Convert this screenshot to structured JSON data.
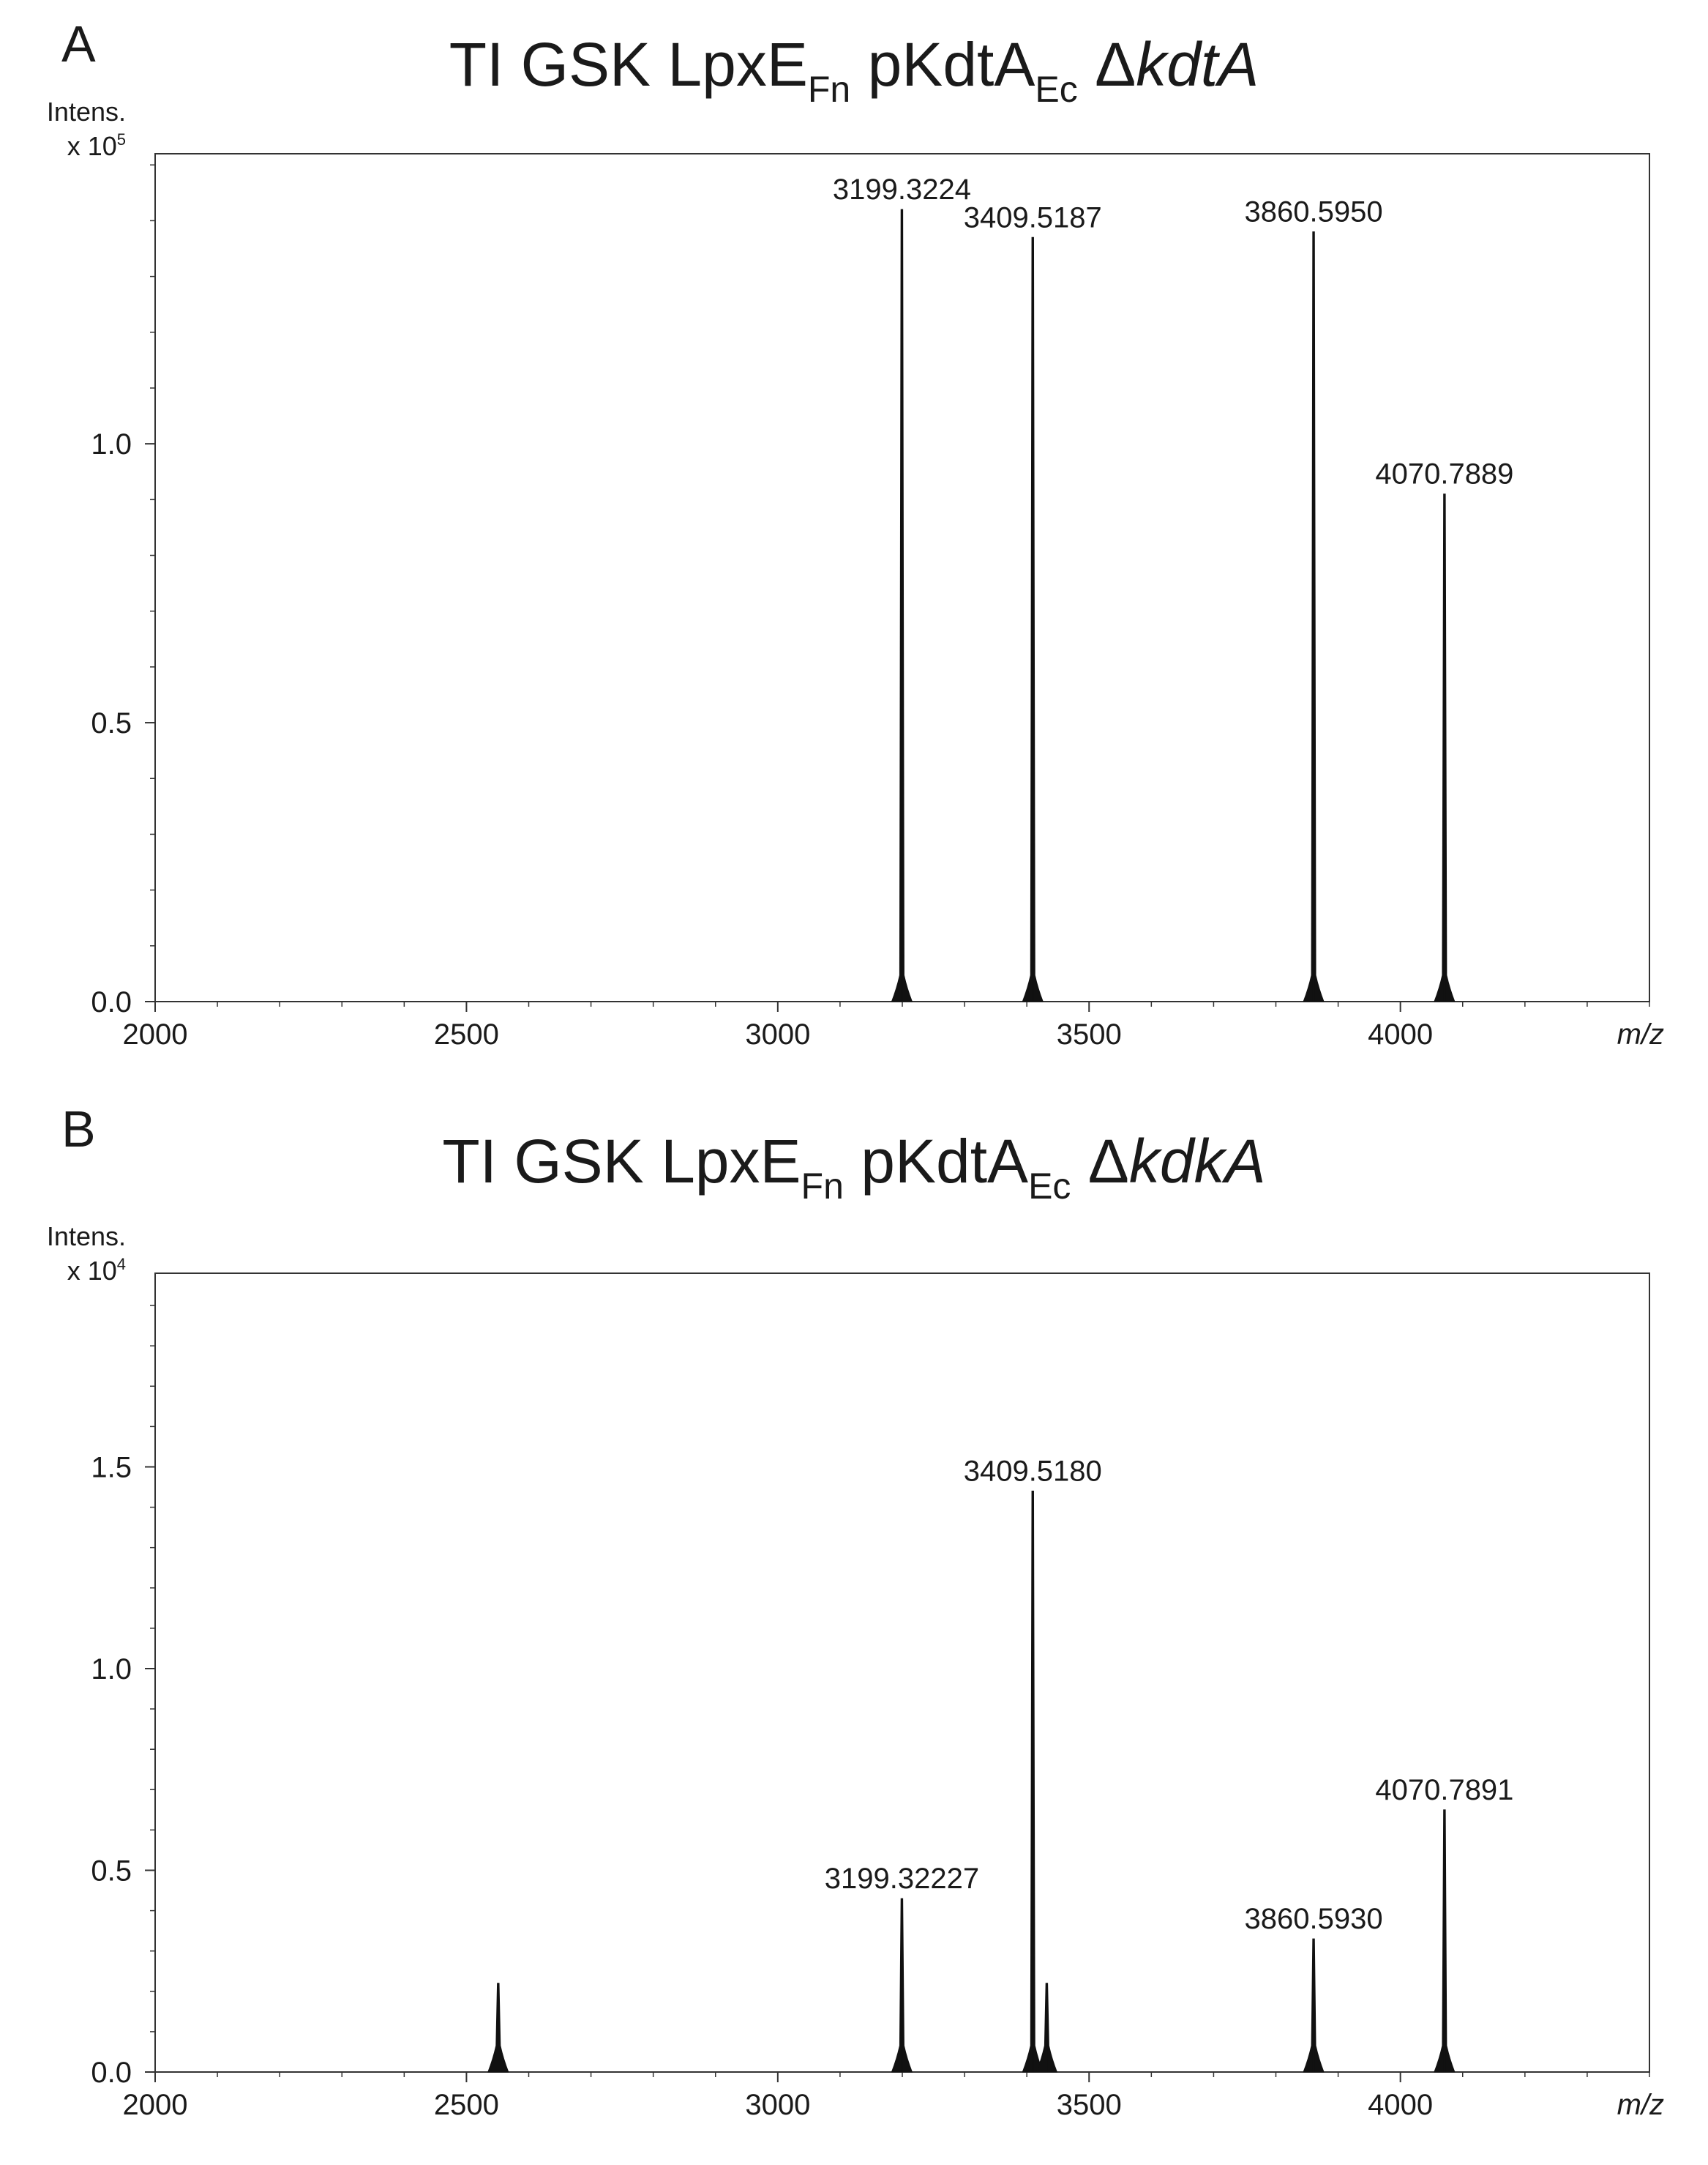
{
  "panels": [
    {
      "letter": "A",
      "title": {
        "main": "TI GSK LpxE",
        "sub1": "Fn",
        "mid": " pKdtA",
        "sub2": "Ec",
        "delta": " Δ",
        "gene": "kdtA"
      },
      "ylabel": "Intens.",
      "yscale": {
        "base": "x 10",
        "exp": "5"
      }
    },
    {
      "letter": "B",
      "title": {
        "main": "TI GSK LpxE",
        "sub1": "Fn",
        "mid": " pKdtA",
        "sub2": "Ec",
        "delta": " Δ",
        "gene": "kdkA"
      },
      "ylabel": "Intens.",
      "yscale": {
        "base": "x 10",
        "exp": "4"
      }
    }
  ],
  "chart_data": [
    {
      "type": "line",
      "title": "TI GSK LpxE Fn pKdtA Ec ΔkdtA",
      "xlabel": "m/z",
      "ylabel": "Intens. x 10^5",
      "xlim": [
        2000,
        4400
      ],
      "ylim": [
        0,
        1.52
      ],
      "xticks": [
        2000,
        2500,
        3000,
        3500,
        4000
      ],
      "xtick_labels": [
        "2000",
        "2500",
        "3000",
        "3500",
        "4000"
      ],
      "yticks": [
        0.0,
        0.5,
        1.0
      ],
      "ytick_labels": [
        "0.0",
        "0.5",
        "1.0"
      ],
      "peaks": [
        {
          "x": 3199.3224,
          "y": 1.42,
          "label": "3199.3224"
        },
        {
          "x": 3409.5187,
          "y": 1.37,
          "label": "3409.5187"
        },
        {
          "x": 3860.595,
          "y": 1.38,
          "label": "3860.5950"
        },
        {
          "x": 4070.7889,
          "y": 0.91,
          "label": "4070.7889"
        }
      ]
    },
    {
      "type": "line",
      "title": "TI GSK LpxE Fn pKdtA Ec ΔkdkA",
      "xlabel": "m/z",
      "ylabel": "Intens. x 10^4",
      "xlim": [
        2000,
        4400
      ],
      "ylim": [
        0,
        1.98
      ],
      "xticks": [
        2000,
        2500,
        3000,
        3500,
        4000
      ],
      "xtick_labels": [
        "2000",
        "2500",
        "3000",
        "3500",
        "4000"
      ],
      "yticks": [
        0.0,
        0.5,
        1.0,
        1.5
      ],
      "ytick_labels": [
        "0.0",
        "0.5",
        "1.0",
        "1.5"
      ],
      "peaks": [
        {
          "x": 2551,
          "y": 0.22,
          "label": ""
        },
        {
          "x": 3199.32227,
          "y": 0.43,
          "label": "3199.32227"
        },
        {
          "x": 3409.518,
          "y": 1.44,
          "label": "3409.5180"
        },
        {
          "x": 3432,
          "y": 0.22,
          "label": ""
        },
        {
          "x": 3860.593,
          "y": 0.33,
          "label": "3860.5930"
        },
        {
          "x": 4070.7891,
          "y": 0.65,
          "label": "4070.7891"
        }
      ]
    }
  ]
}
